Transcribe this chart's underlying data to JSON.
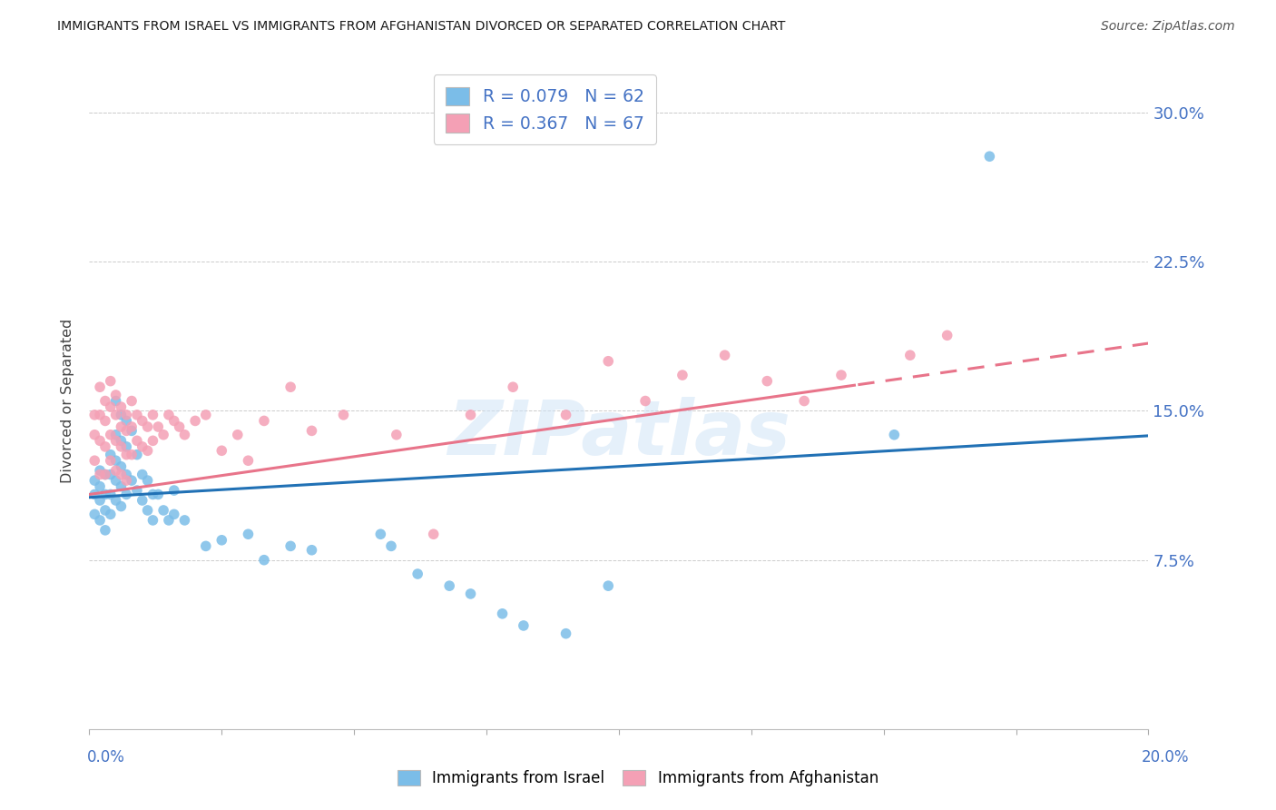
{
  "title": "IMMIGRANTS FROM ISRAEL VS IMMIGRANTS FROM AFGHANISTAN DIVORCED OR SEPARATED CORRELATION CHART",
  "source": "Source: ZipAtlas.com",
  "ylabel": "Divorced or Separated",
  "ytick_labels": [
    "30.0%",
    "22.5%",
    "15.0%",
    "7.5%"
  ],
  "ytick_values": [
    0.3,
    0.225,
    0.15,
    0.075
  ],
  "xmin": 0.0,
  "xmax": 0.2,
  "ymin": -0.01,
  "ymax": 0.32,
  "israel_color": "#7bbde8",
  "afghanistan_color": "#f4a0b5",
  "israel_R": 0.079,
  "israel_N": 62,
  "afghanistan_R": 0.367,
  "afghanistan_N": 67,
  "israel_line_color": "#2171b5",
  "afghanistan_line_color": "#e8748a",
  "israel_line_intercept": 0.1065,
  "israel_line_slope": 0.155,
  "afghanistan_line_intercept": 0.108,
  "afghanistan_line_slope": 0.38,
  "afghanistan_line_dash_start": 0.145,
  "background_color": "#ffffff",
  "grid_color": "#cccccc",
  "watermark": "ZIPatlas",
  "israel_x": [
    0.001,
    0.001,
    0.001,
    0.002,
    0.002,
    0.002,
    0.002,
    0.003,
    0.003,
    0.003,
    0.003,
    0.004,
    0.004,
    0.004,
    0.004,
    0.005,
    0.005,
    0.005,
    0.005,
    0.005,
    0.006,
    0.006,
    0.006,
    0.006,
    0.006,
    0.007,
    0.007,
    0.007,
    0.007,
    0.008,
    0.008,
    0.009,
    0.009,
    0.01,
    0.01,
    0.011,
    0.011,
    0.012,
    0.012,
    0.013,
    0.014,
    0.015,
    0.016,
    0.016,
    0.018,
    0.022,
    0.025,
    0.03,
    0.033,
    0.038,
    0.042,
    0.055,
    0.057,
    0.062,
    0.068,
    0.072,
    0.078,
    0.082,
    0.09,
    0.098,
    0.152,
    0.17
  ],
  "israel_y": [
    0.115,
    0.108,
    0.098,
    0.12,
    0.112,
    0.105,
    0.095,
    0.118,
    0.108,
    0.1,
    0.09,
    0.128,
    0.118,
    0.108,
    0.098,
    0.155,
    0.138,
    0.125,
    0.115,
    0.105,
    0.148,
    0.135,
    0.122,
    0.112,
    0.102,
    0.145,
    0.132,
    0.118,
    0.108,
    0.14,
    0.115,
    0.128,
    0.11,
    0.118,
    0.105,
    0.115,
    0.1,
    0.108,
    0.095,
    0.108,
    0.1,
    0.095,
    0.11,
    0.098,
    0.095,
    0.082,
    0.085,
    0.088,
    0.075,
    0.082,
    0.08,
    0.088,
    0.082,
    0.068,
    0.062,
    0.058,
    0.048,
    0.042,
    0.038,
    0.062,
    0.138,
    0.278
  ],
  "afghanistan_x": [
    0.001,
    0.001,
    0.001,
    0.002,
    0.002,
    0.002,
    0.002,
    0.003,
    0.003,
    0.003,
    0.003,
    0.004,
    0.004,
    0.004,
    0.004,
    0.005,
    0.005,
    0.005,
    0.005,
    0.006,
    0.006,
    0.006,
    0.006,
    0.007,
    0.007,
    0.007,
    0.007,
    0.008,
    0.008,
    0.008,
    0.009,
    0.009,
    0.01,
    0.01,
    0.011,
    0.011,
    0.012,
    0.012,
    0.013,
    0.014,
    0.015,
    0.016,
    0.017,
    0.018,
    0.02,
    0.022,
    0.025,
    0.028,
    0.03,
    0.033,
    0.038,
    0.042,
    0.048,
    0.058,
    0.065,
    0.072,
    0.08,
    0.09,
    0.098,
    0.105,
    0.112,
    0.12,
    0.128,
    0.135,
    0.142,
    0.155,
    0.162
  ],
  "afghanistan_y": [
    0.148,
    0.138,
    0.125,
    0.162,
    0.148,
    0.135,
    0.118,
    0.155,
    0.145,
    0.132,
    0.118,
    0.165,
    0.152,
    0.138,
    0.125,
    0.158,
    0.148,
    0.135,
    0.12,
    0.152,
    0.142,
    0.132,
    0.118,
    0.148,
    0.14,
    0.128,
    0.115,
    0.155,
    0.142,
    0.128,
    0.148,
    0.135,
    0.145,
    0.132,
    0.142,
    0.13,
    0.148,
    0.135,
    0.142,
    0.138,
    0.148,
    0.145,
    0.142,
    0.138,
    0.145,
    0.148,
    0.13,
    0.138,
    0.125,
    0.145,
    0.162,
    0.14,
    0.148,
    0.138,
    0.088,
    0.148,
    0.162,
    0.148,
    0.175,
    0.155,
    0.168,
    0.178,
    0.165,
    0.155,
    0.168,
    0.178,
    0.188
  ]
}
